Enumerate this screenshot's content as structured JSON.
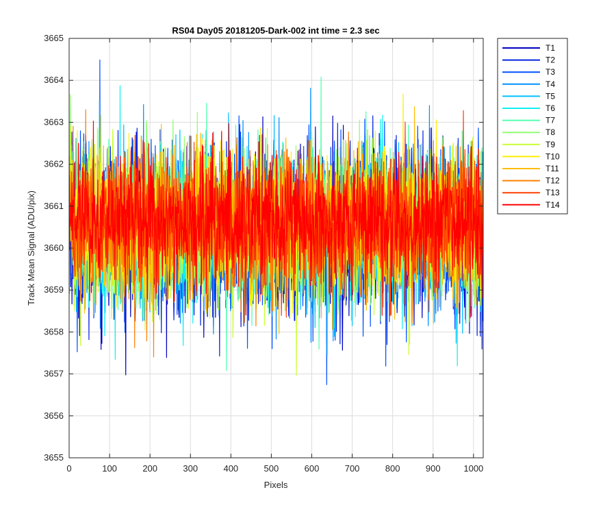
{
  "chart_data": {
    "type": "line",
    "title": "RS04 Day05 20181205-Dark-002 int time = 2.3 sec",
    "xlabel": "Pixels",
    "ylabel": "Track Mean Signal (ADU/pix)",
    "xlim": [
      0,
      1024
    ],
    "ylim": [
      3655,
      3665
    ],
    "xticks": [
      "0",
      "100",
      "200",
      "300",
      "400",
      "500",
      "600",
      "700",
      "800",
      "900",
      "1000"
    ],
    "yticks": [
      "3655",
      "3656",
      "3657",
      "3658",
      "3659",
      "3660",
      "3661",
      "3662",
      "3663",
      "3664",
      "3665"
    ],
    "grid": true,
    "legend_position": "outside-top-right",
    "n_points": 1024,
    "series": [
      {
        "name": "T1",
        "color": "#0000bf",
        "mean": 3660.3,
        "std": 0.95
      },
      {
        "name": "T2",
        "color": "#0022e0",
        "mean": 3660.35,
        "std": 0.95
      },
      {
        "name": "T3",
        "color": "#0050ff",
        "mean": 3660.4,
        "std": 0.92
      },
      {
        "name": "T4",
        "color": "#0090ff",
        "mean": 3660.4,
        "std": 0.9
      },
      {
        "name": "T5",
        "color": "#00c0ff",
        "mean": 3660.45,
        "std": 0.9
      },
      {
        "name": "T6",
        "color": "#10f0f0",
        "mean": 3660.45,
        "std": 0.88
      },
      {
        "name": "T7",
        "color": "#50ffb0",
        "mean": 3660.5,
        "std": 0.88
      },
      {
        "name": "T8",
        "color": "#90ff70",
        "mean": 3660.5,
        "std": 0.86
      },
      {
        "name": "T9",
        "color": "#c8ff30",
        "mean": 3660.5,
        "std": 0.86
      },
      {
        "name": "T10",
        "color": "#ffee00",
        "mean": 3660.55,
        "std": 0.84
      },
      {
        "name": "T11",
        "color": "#ffbb00",
        "mean": 3660.55,
        "std": 0.84
      },
      {
        "name": "T12",
        "color": "#ff7f00",
        "mean": 3660.55,
        "std": 0.82
      },
      {
        "name": "T13",
        "color": "#ff4000",
        "mean": 3660.6,
        "std": 0.8
      },
      {
        "name": "T14",
        "color": "#ff0000",
        "mean": 3660.65,
        "std": 0.78
      }
    ]
  }
}
